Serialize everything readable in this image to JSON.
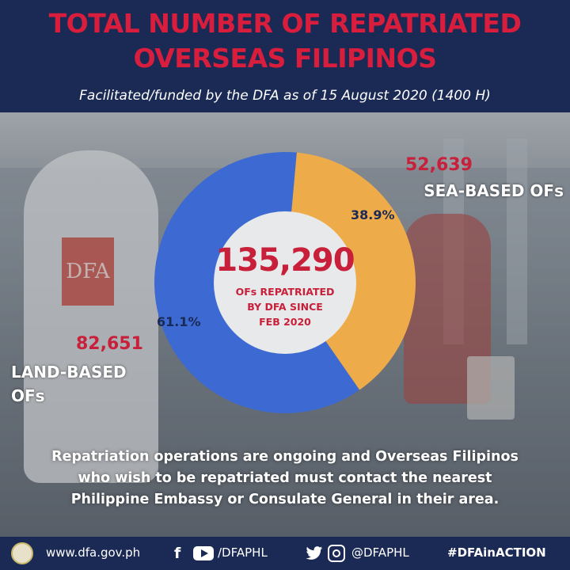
{
  "header": {
    "title_line1": "TOTAL NUMBER OF REPATRIATED",
    "title_line2": "OVERSEAS FILIPINOS",
    "subtitle": "Facilitated/funded by the DFA as of  15 August 2020 (1400 H)"
  },
  "background": {
    "dfa_patch_text": "DFA"
  },
  "chart_data": {
    "type": "pie",
    "style": "donut",
    "total": "135,290",
    "total_label_lines": [
      "OFs REPATRIATED",
      "BY DFA  SINCE",
      "FEB 2020"
    ],
    "slices": [
      {
        "label": "SEA-BASED OFs",
        "value": 52639,
        "value_text": "52,639",
        "percent": 38.9,
        "percent_text": "38.9%",
        "color": "#eeab49"
      },
      {
        "label": "LAND-BASED OFs",
        "label_lines": [
          "LAND-BASED",
          "OFs"
        ],
        "value": 82651,
        "value_text": "82,651",
        "percent": 61.1,
        "percent_text": "61.1%",
        "color": "#3c6ad2"
      }
    ]
  },
  "note": {
    "line1": "Repatriation operations are ongoing and Overseas Filipinos",
    "line2": "who wish to be repatriated must contact the nearest",
    "line3": "Philippine Embassy or Consulate General in their area."
  },
  "footer": {
    "website": "www.dfa.gov.ph",
    "fb_yt_handle": "/DFAPHL",
    "tw_ig_handle": "@DFAPHL",
    "hashtag": "#DFAinACTION",
    "icons": [
      "dfa-seal-icon",
      "facebook-icon",
      "youtube-icon",
      "twitter-icon",
      "instagram-icon"
    ]
  },
  "colors": {
    "navy": "#1b2a55",
    "red": "#d81e3c",
    "sea_slice": "#eeab49",
    "land_slice": "#3c6ad2"
  }
}
